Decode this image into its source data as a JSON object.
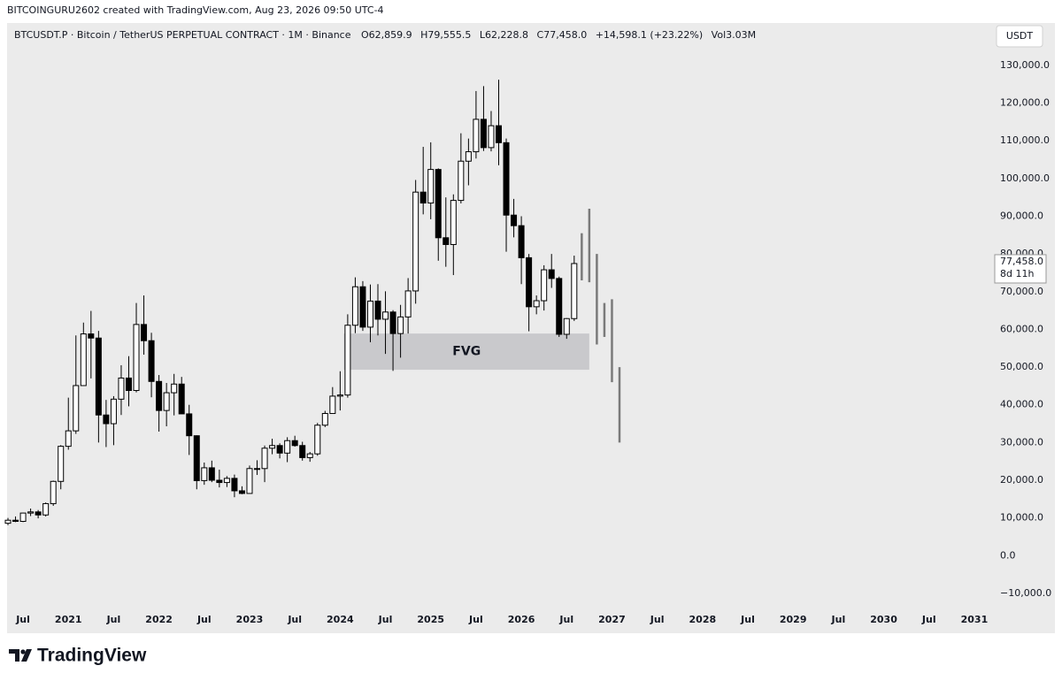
{
  "header": {
    "watermark": "BITCOINGURU2602 created with TradingView.com, Aug 23, 2026 09:50 UTC-4",
    "symbol": "BTCUSDT.P · Bitcoin / TetherUS PERPETUAL CONTRACT · 1M · Binance",
    "ohlc": [
      "O62,859.9",
      "H79,555.5",
      "L62,228.8",
      "C77,458.0",
      "+14,598.1 (+23.22%)",
      "Vol3.03M"
    ],
    "currency": "USDT"
  },
  "footer": {
    "brand": "TradingView"
  },
  "chart_data": {
    "type": "candlestick",
    "up_color": "#ffffff",
    "down_color": "#000000",
    "grid": false,
    "xlim": [
      "2020-05",
      "2031-03"
    ],
    "ylim": [
      -14000,
      140300
    ],
    "yticks": [
      {
        "value": 130000,
        "label": "130,000.0"
      },
      {
        "value": 120000,
        "label": "120,000.0"
      },
      {
        "value": 110000,
        "label": "110,000.0"
      },
      {
        "value": 100000,
        "label": "100,000.0"
      },
      {
        "value": 90000,
        "label": "90,000.0"
      },
      {
        "value": 80000,
        "label": "80,000.0"
      },
      {
        "value": 70000,
        "label": "70,000.0"
      },
      {
        "value": 60000,
        "label": "60,000.0"
      },
      {
        "value": 50000,
        "label": "50,000.0"
      },
      {
        "value": 40000,
        "label": "40,000.0"
      },
      {
        "value": 30000,
        "label": "30,000.0"
      },
      {
        "value": 20000,
        "label": "20,000.0"
      },
      {
        "value": 10000,
        "label": "10,000.0"
      },
      {
        "value": 0,
        "label": "0.0"
      },
      {
        "value": -10000,
        "label": "−10,000.0"
      }
    ],
    "xticks": [
      {
        "value": "2020-07",
        "label": "Jul"
      },
      {
        "value": "2021-01",
        "label": "2021"
      },
      {
        "value": "2021-07",
        "label": "Jul"
      },
      {
        "value": "2022-01",
        "label": "2022"
      },
      {
        "value": "2022-07",
        "label": "Jul"
      },
      {
        "value": "2023-01",
        "label": "2023"
      },
      {
        "value": "2023-07",
        "label": "Jul"
      },
      {
        "value": "2024-01",
        "label": "2024"
      },
      {
        "value": "2024-07",
        "label": "Jul"
      },
      {
        "value": "2025-01",
        "label": "2025"
      },
      {
        "value": "2025-07",
        "label": "Jul"
      },
      {
        "value": "2026-01",
        "label": "2026"
      },
      {
        "value": "2026-07",
        "label": "Jul"
      },
      {
        "value": "2027-01",
        "label": "2027"
      },
      {
        "value": "2027-07",
        "label": "Jul"
      },
      {
        "value": "2028-01",
        "label": "2028"
      },
      {
        "value": "2028-07",
        "label": "Jul"
      },
      {
        "value": "2029-01",
        "label": "2029"
      },
      {
        "value": "2029-07",
        "label": "Jul"
      },
      {
        "value": "2030-01",
        "label": "2030"
      },
      {
        "value": "2030-07",
        "label": "Jul"
      },
      {
        "value": "2031-01",
        "label": "2031"
      }
    ],
    "x": [
      "2020-05",
      "2020-06",
      "2020-07",
      "2020-08",
      "2020-09",
      "2020-10",
      "2020-11",
      "2020-12",
      "2021-01",
      "2021-02",
      "2021-03",
      "2021-04",
      "2021-05",
      "2021-06",
      "2021-07",
      "2021-08",
      "2021-09",
      "2021-10",
      "2021-11",
      "2021-12",
      "2022-01",
      "2022-02",
      "2022-03",
      "2022-04",
      "2022-05",
      "2022-06",
      "2022-07",
      "2022-08",
      "2022-09",
      "2022-10",
      "2022-11",
      "2022-12",
      "2023-01",
      "2023-02",
      "2023-03",
      "2023-04",
      "2023-05",
      "2023-06",
      "2023-07",
      "2023-08",
      "2023-09",
      "2023-10",
      "2023-11",
      "2023-12",
      "2024-01",
      "2024-02",
      "2024-03",
      "2024-04",
      "2024-05",
      "2024-06",
      "2024-07",
      "2024-08",
      "2024-09",
      "2024-10",
      "2024-11",
      "2024-12",
      "2025-01",
      "2025-02",
      "2025-03",
      "2025-04",
      "2025-05",
      "2025-06",
      "2025-07",
      "2025-08",
      "2025-09",
      "2025-10",
      "2025-11",
      "2025-12",
      "2026-01",
      "2026-02",
      "2026-03",
      "2026-04",
      "2026-05",
      "2026-06",
      "2026-07",
      "2026-08"
    ],
    "open": [
      8600,
      9400,
      9100,
      11300,
      11600,
      10800,
      13800,
      19700,
      29000,
      33100,
      45100,
      58800,
      57700,
      37300,
      35000,
      41500,
      47100,
      43800,
      61300,
      57000,
      46200,
      38500,
      43200,
      45500,
      37600,
      31800,
      19900,
      23300,
      20000,
      19400,
      20500,
      17200,
      16500,
      23100,
      23100,
      28500,
      29200,
      27200,
      30500,
      29200,
      26000,
      27000,
      34600,
      37700,
      42300,
      42600,
      61100,
      71300,
      60600,
      67500,
      62700,
      64600,
      58900,
      63300,
      70200,
      96400,
      93500,
      102400,
      84300,
      82500,
      94200,
      104600,
      107100,
      115700,
      108200,
      114000,
      109500,
      90300,
      87500,
      79000,
      66000,
      67600,
      75800,
      73500,
      58700,
      62859.9
    ],
    "high": [
      10000,
      10400,
      11400,
      12500,
      12100,
      14100,
      19900,
      29300,
      41900,
      58400,
      61800,
      64900,
      59600,
      41300,
      42300,
      50500,
      52900,
      67000,
      69000,
      59100,
      47900,
      45800,
      48200,
      47400,
      40000,
      31900,
      24700,
      25200,
      22800,
      21100,
      21500,
      18400,
      23900,
      25300,
      29200,
      31000,
      29800,
      31400,
      31800,
      30200,
      27500,
      35200,
      38400,
      44700,
      48900,
      64000,
      73800,
      72800,
      71900,
      72000,
      70100,
      65100,
      66500,
      73600,
      99600,
      108400,
      109600,
      102700,
      95000,
      95800,
      112000,
      110600,
      123200,
      124500,
      117900,
      126200,
      110600,
      94600,
      90000,
      80000,
      69000,
      77000,
      80000,
      74000,
      63000,
      79555.5
    ],
    "low": [
      8100,
      8900,
      8900,
      10500,
      9900,
      10400,
      13200,
      17600,
      28100,
      32300,
      45000,
      47000,
      30000,
      28800,
      29300,
      37300,
      39600,
      43300,
      53300,
      42000,
      32900,
      34300,
      37200,
      37700,
      26700,
      17600,
      18800,
      19500,
      18100,
      18200,
      15500,
      16300,
      16500,
      21400,
      19500,
      26900,
      25800,
      24800,
      28900,
      25200,
      24900,
      26500,
      34100,
      37600,
      38500,
      41900,
      59000,
      59600,
      56600,
      58400,
      53500,
      49000,
      52500,
      58900,
      66800,
      90500,
      89200,
      78200,
      76600,
      74400,
      93400,
      98200,
      105300,
      107300,
      107200,
      103500,
      80600,
      84400,
      72000,
      59500,
      64000,
      65000,
      71000,
      58000,
      57500,
      62228.8
    ],
    "close": [
      9400,
      9100,
      11300,
      11600,
      10800,
      13800,
      19700,
      29000,
      33100,
      45100,
      58800,
      57700,
      37300,
      35000,
      41500,
      47100,
      43800,
      61300,
      57000,
      46200,
      38500,
      43200,
      45500,
      37600,
      31800,
      19900,
      23300,
      20000,
      19400,
      20500,
      17200,
      16500,
      23100,
      23100,
      28500,
      29200,
      27200,
      30500,
      29200,
      26000,
      27000,
      34600,
      37700,
      42300,
      42600,
      61100,
      71300,
      60600,
      67500,
      62700,
      64600,
      58900,
      63300,
      70200,
      96400,
      93500,
      102400,
      84300,
      82500,
      94200,
      104600,
      107100,
      115700,
      108200,
      114000,
      109500,
      90300,
      87500,
      79000,
      66000,
      67600,
      75800,
      73500,
      58700,
      62859.9,
      77458
    ],
    "last_price_label": "77,458.0",
    "countdown": "8d 11h",
    "projection": {
      "color": "#7a7a7a",
      "x": [
        "2026-09",
        "2026-10",
        "2026-11",
        "2026-12",
        "2027-01",
        "2027-02"
      ],
      "low": [
        73000,
        72500,
        56000,
        58000,
        46000,
        30000
      ],
      "high": [
        85500,
        92000,
        80000,
        67000,
        68000,
        50000
      ]
    },
    "zone": {
      "label": "FVG",
      "x0": "2024-02",
      "x1": "2026-10",
      "low": 49300,
      "high": 58900,
      "color": "#c9c9cc"
    }
  }
}
